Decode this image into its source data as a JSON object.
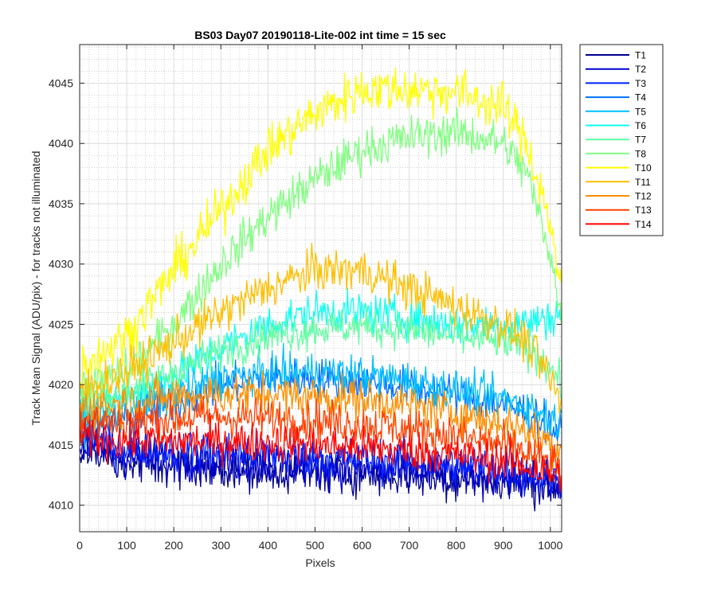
{
  "chart_data": {
    "type": "line",
    "title": "BS03 Day07 20190118-Lite-002 int time = 15 sec",
    "xlabel": "Pixels",
    "ylabel": "Track Mean Signal (ADU/pix) - for tracks not illuminated",
    "xlim": [
      0,
      1024
    ],
    "ylim": [
      4007.8,
      4048.2
    ],
    "xticks": [
      0,
      100,
      200,
      300,
      400,
      500,
      600,
      700,
      800,
      900,
      1000
    ],
    "yticks": [
      4010,
      4015,
      4020,
      4025,
      4030,
      4035,
      4040,
      4045
    ],
    "grid": true,
    "minor_grid": true,
    "legend_position": "outside top-right",
    "x_profile": [
      0,
      100,
      200,
      300,
      400,
      500,
      600,
      700,
      800,
      900,
      950,
      1000,
      1024
    ],
    "series": [
      {
        "name": "T1",
        "color": "#00008f",
        "noise": 1.6,
        "values": [
          4014.5,
          4013.5,
          4013.3,
          4013.0,
          4012.8,
          4012.8,
          4012.6,
          4012.4,
          4012.2,
          4012.0,
          4011.8,
          4011.6,
          4011.5
        ]
      },
      {
        "name": "T2",
        "color": "#0000cf",
        "noise": 1.6,
        "values": [
          4015.0,
          4014.0,
          4013.8,
          4013.6,
          4013.4,
          4013.2,
          4013.0,
          4012.8,
          4012.6,
          4012.3,
          4012.0,
          4011.8,
          4011.6
        ]
      },
      {
        "name": "T3",
        "color": "#0020ff",
        "noise": 1.6,
        "values": [
          4015.5,
          4014.8,
          4014.6,
          4014.4,
          4014.2,
          4014.0,
          4013.8,
          4013.6,
          4013.3,
          4013.0,
          4012.6,
          4012.2,
          4012.0
        ]
      },
      {
        "name": "T4",
        "color": "#0070ff",
        "noise": 1.5,
        "values": [
          4016.5,
          4017.0,
          4018.5,
          4020.0,
          4020.5,
          4020.5,
          4020.3,
          4019.8,
          4019.2,
          4018.3,
          4017.8,
          4016.5,
          4016.0
        ]
      },
      {
        "name": "T5",
        "color": "#00bfff",
        "noise": 1.5,
        "values": [
          4017.0,
          4017.8,
          4019.2,
          4020.5,
          4021.0,
          4021.0,
          4020.8,
          4020.3,
          4019.6,
          4018.8,
          4018.2,
          4017.2,
          4016.8
        ]
      },
      {
        "name": "T6",
        "color": "#10ffef",
        "noise": 1.5,
        "values": [
          4018.0,
          4019.0,
          4020.8,
          4023.0,
          4025.0,
          4026.0,
          4026.0,
          4025.5,
          4025.0,
          4025.0,
          4025.2,
          4025.5,
          4026.0
        ]
      },
      {
        "name": "T7",
        "color": "#60ffa0",
        "noise": 1.4,
        "values": [
          4018.5,
          4019.5,
          4021.0,
          4022.8,
          4024.0,
          4024.6,
          4024.8,
          4024.5,
          4024.0,
          4023.5,
          4023.0,
          4021.5,
          4020.0
        ]
      },
      {
        "name": "T8",
        "color": "#80ff80",
        "noise": 1.6,
        "values": [
          4019.5,
          4021.0,
          4025.0,
          4030.0,
          4034.0,
          4037.0,
          4039.5,
          4040.5,
          4041.0,
          4040.0,
          4037.5,
          4031.0,
          4025.0
        ]
      },
      {
        "name": "T10",
        "color": "#ffff00",
        "noise": 1.8,
        "values": [
          4021.5,
          4024.0,
          4029.5,
          4034.5,
          4039.5,
          4042.5,
          4044.5,
          4044.5,
          4044.3,
          4043.0,
          4040.0,
          4033.5,
          4027.0
        ]
      },
      {
        "name": "T11",
        "color": "#ffbf00",
        "noise": 1.6,
        "values": [
          4019.5,
          4021.0,
          4023.5,
          4026.0,
          4028.0,
          4029.5,
          4029.5,
          4028.0,
          4026.5,
          4025.0,
          4023.5,
          4020.5,
          4018.0
        ]
      },
      {
        "name": "T12",
        "color": "#ff8f00",
        "noise": 1.6,
        "values": [
          4018.0,
          4018.5,
          4019.0,
          4019.2,
          4019.2,
          4019.0,
          4018.8,
          4018.3,
          4017.6,
          4016.8,
          4016.2,
          4015.2,
          4014.5
        ]
      },
      {
        "name": "T13",
        "color": "#ff4000",
        "noise": 1.6,
        "values": [
          4017.0,
          4017.0,
          4017.2,
          4017.3,
          4017.2,
          4017.0,
          4016.7,
          4016.3,
          4015.7,
          4015.0,
          4014.3,
          4013.5,
          4013.0
        ]
      },
      {
        "name": "T14",
        "color": "#ff0000",
        "noise": 1.5,
        "values": [
          4015.5,
          4015.4,
          4015.3,
          4015.3,
          4015.2,
          4015.0,
          4014.8,
          4014.5,
          4014.2,
          4013.7,
          4013.2,
          4012.6,
          4012.3
        ]
      }
    ]
  }
}
